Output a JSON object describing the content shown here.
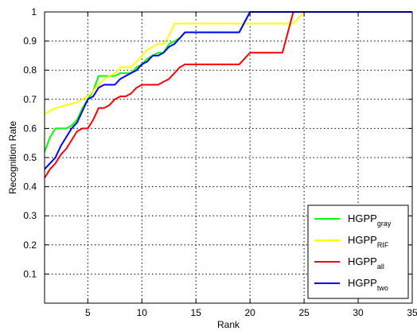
{
  "chart_data": {
    "type": "line",
    "xlabel": "Rank",
    "ylabel": "Recognition Rate",
    "xlim": [
      1,
      35
    ],
    "ylim": [
      0,
      1
    ],
    "xticks": [
      5,
      10,
      15,
      20,
      25,
      30,
      35
    ],
    "yticks": [
      0.1,
      0.2,
      0.3,
      0.4,
      0.5,
      0.6,
      0.7,
      0.8,
      0.9,
      1
    ],
    "xtick_labels": [
      "5",
      "10",
      "15",
      "20",
      "25",
      "30",
      "35"
    ],
    "ytick_labels": [
      "0.1",
      "0.2",
      "0.3",
      "0.4",
      "0.5",
      "0.6",
      "0.7",
      "0.8",
      "0.9",
      "1"
    ],
    "grid": true,
    "legend_position": "bottom-right",
    "series": [
      {
        "name": "HGPP",
        "subscript": "gray",
        "color": "#00ff00",
        "x": [
          1,
          1.5,
          2,
          2.5,
          3,
          3.5,
          4,
          4.5,
          5,
          5.5,
          6,
          6.5,
          7,
          7.5,
          8,
          8.5,
          9,
          9.5,
          10,
          10.5,
          11,
          11.5,
          12,
          12.5,
          13,
          13.5,
          14,
          19,
          20,
          35
        ],
        "y": [
          0.52,
          0.57,
          0.6,
          0.6,
          0.6,
          0.61,
          0.63,
          0.67,
          0.7,
          0.73,
          0.78,
          0.78,
          0.78,
          0.78,
          0.79,
          0.79,
          0.79,
          0.81,
          0.82,
          0.84,
          0.85,
          0.86,
          0.86,
          0.89,
          0.9,
          0.91,
          0.93,
          0.93,
          1.0,
          1.0
        ]
      },
      {
        "name": "HGPP",
        "subscript": "RIF",
        "color": "#ffff00",
        "x": [
          1,
          1.5,
          2,
          3,
          4,
          4.5,
          5,
          5.5,
          6,
          6.5,
          7,
          7.5,
          8,
          8.5,
          9,
          9.5,
          10,
          10.5,
          11,
          11.5,
          12,
          12.5,
          13,
          19,
          20,
          24,
          25,
          35
        ],
        "y": [
          0.65,
          0.66,
          0.67,
          0.68,
          0.69,
          0.7,
          0.71,
          0.73,
          0.75,
          0.77,
          0.78,
          0.79,
          0.81,
          0.81,
          0.81,
          0.83,
          0.85,
          0.87,
          0.88,
          0.89,
          0.89,
          0.92,
          0.96,
          0.96,
          0.96,
          0.96,
          1.0,
          1.0
        ]
      },
      {
        "name": "HGPP",
        "subscript": "all",
        "color": "#ff0000",
        "x": [
          1,
          1.5,
          2,
          2.5,
          3,
          3.5,
          4,
          4.5,
          5,
          5.5,
          6,
          6.5,
          7,
          7.5,
          8,
          8.5,
          9,
          9.5,
          10,
          10.5,
          11,
          11.5,
          12,
          12.5,
          13,
          13.5,
          14,
          19,
          20,
          23,
          24,
          35
        ],
        "y": [
          0.43,
          0.46,
          0.48,
          0.51,
          0.53,
          0.56,
          0.59,
          0.6,
          0.6,
          0.63,
          0.67,
          0.67,
          0.68,
          0.7,
          0.71,
          0.71,
          0.72,
          0.74,
          0.75,
          0.75,
          0.75,
          0.75,
          0.76,
          0.77,
          0.79,
          0.81,
          0.82,
          0.82,
          0.86,
          0.86,
          1.0,
          1.0
        ]
      },
      {
        "name": "HGPP",
        "subscript": "two",
        "color": "#0000ff",
        "x": [
          1,
          1.5,
          2,
          2.5,
          3,
          3.5,
          4,
          4.5,
          5,
          5.5,
          6,
          6.5,
          7,
          7.5,
          8,
          8.5,
          9,
          9.5,
          10,
          10.5,
          11,
          11.5,
          12,
          12.5,
          13,
          13.5,
          14,
          19,
          20,
          35
        ],
        "y": [
          0.46,
          0.48,
          0.5,
          0.54,
          0.57,
          0.6,
          0.62,
          0.66,
          0.7,
          0.71,
          0.74,
          0.75,
          0.75,
          0.75,
          0.77,
          0.78,
          0.79,
          0.8,
          0.82,
          0.83,
          0.85,
          0.85,
          0.86,
          0.88,
          0.89,
          0.91,
          0.93,
          0.93,
          1.0,
          1.0
        ]
      }
    ]
  }
}
